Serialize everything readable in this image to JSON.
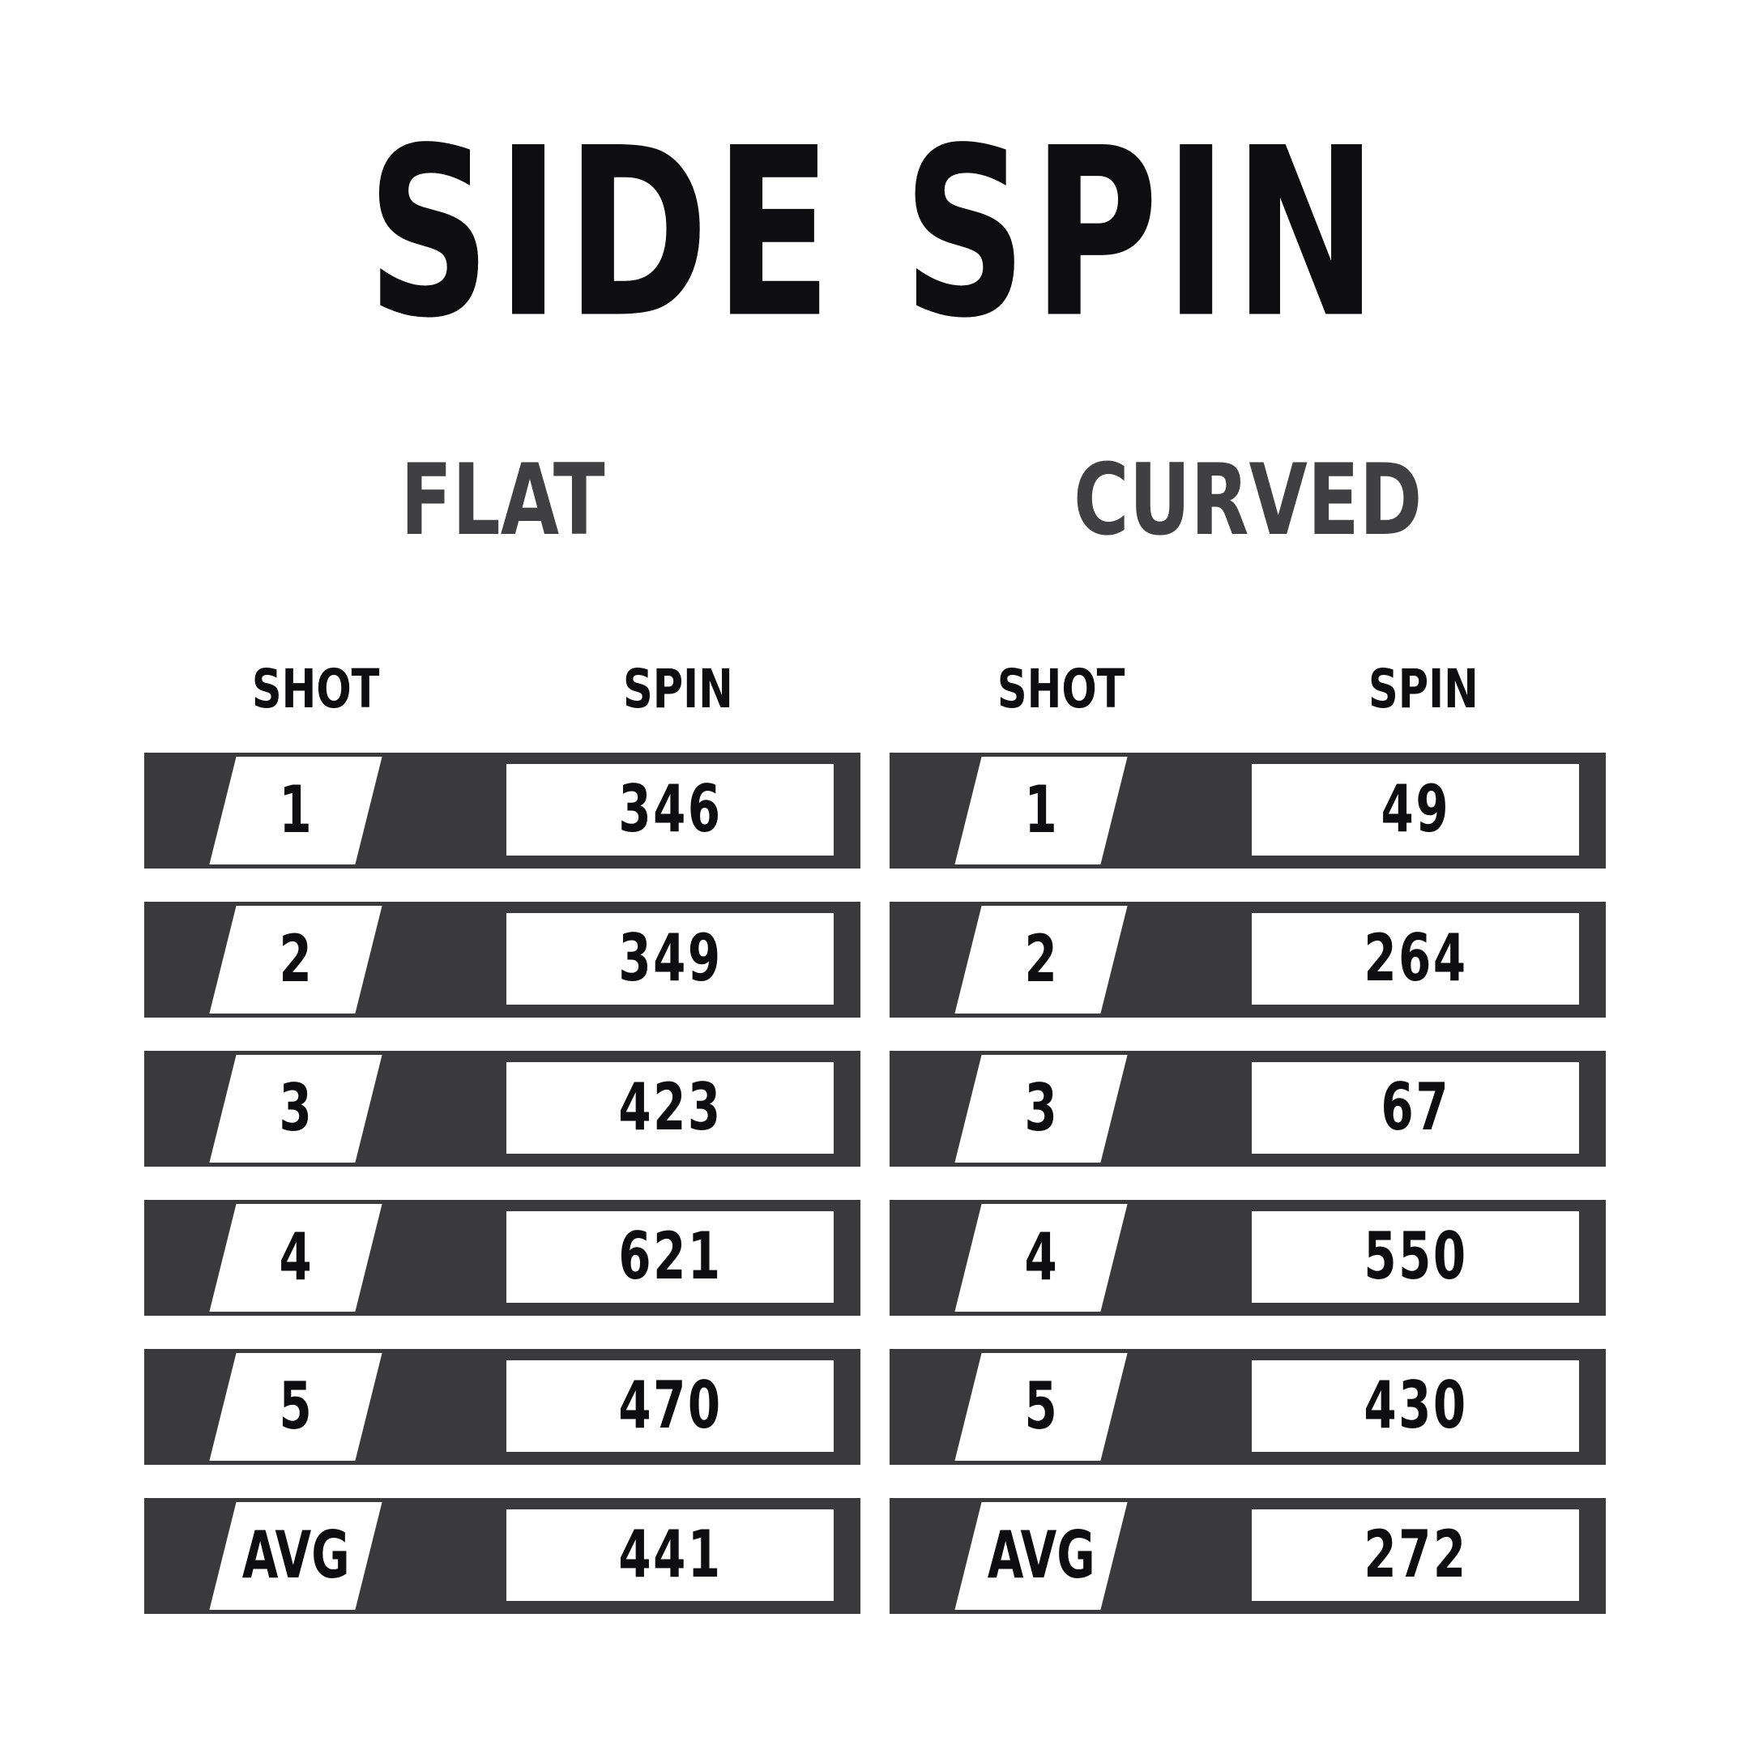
{
  "title": "SIDE SPIN",
  "colors": {
    "ink": "#0e0e10",
    "dim": "#404043",
    "bar": "#3a3a3c",
    "cell": "#ffffff"
  },
  "tables": [
    {
      "name": "FLAT",
      "columns": {
        "shot": "SHOT",
        "spin": "SPIN"
      },
      "rows": [
        {
          "shot": "1",
          "spin": "346"
        },
        {
          "shot": "2",
          "spin": "349"
        },
        {
          "shot": "3",
          "spin": "423"
        },
        {
          "shot": "4",
          "spin": "621"
        },
        {
          "shot": "5",
          "spin": "470"
        },
        {
          "shot": "AVG",
          "spin": "441"
        }
      ]
    },
    {
      "name": "CURVED",
      "columns": {
        "shot": "SHOT",
        "spin": "SPIN"
      },
      "rows": [
        {
          "shot": "1",
          "spin": "49"
        },
        {
          "shot": "2",
          "spin": "264"
        },
        {
          "shot": "3",
          "spin": "67"
        },
        {
          "shot": "4",
          "spin": "550"
        },
        {
          "shot": "5",
          "spin": "430"
        },
        {
          "shot": "AVG",
          "spin": "272"
        }
      ]
    }
  ],
  "chart_data": {
    "type": "table",
    "title": "SIDE SPIN",
    "groups": [
      {
        "name": "FLAT",
        "columns": [
          "SHOT",
          "SPIN"
        ],
        "rows": [
          [
            "1",
            346
          ],
          [
            "2",
            349
          ],
          [
            "3",
            423
          ],
          [
            "4",
            621
          ],
          [
            "5",
            470
          ],
          [
            "AVG",
            441
          ]
        ]
      },
      {
        "name": "CURVED",
        "columns": [
          "SHOT",
          "SPIN"
        ],
        "rows": [
          [
            "1",
            49
          ],
          [
            "2",
            264
          ],
          [
            "3",
            67
          ],
          [
            "4",
            550
          ],
          [
            "5",
            430
          ],
          [
            "AVG",
            272
          ]
        ]
      }
    ]
  }
}
